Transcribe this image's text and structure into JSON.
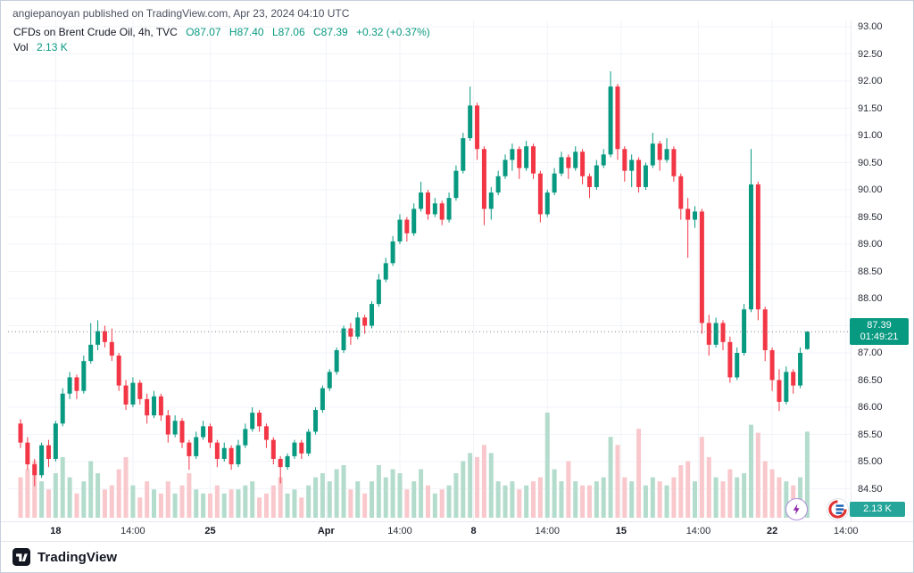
{
  "header": {
    "attribution": "angiepanoyan published on TradingView.com, Apr 23, 2024 04:10 UTC"
  },
  "legend": {
    "symbol": "CFDs on Brent Crude Oil, 4h, TVC",
    "o": "O87.07",
    "h": "H87.40",
    "l": "L87.06",
    "c": "C87.39",
    "change": "+0.32 (+0.37%)",
    "vol_label": "Vol",
    "vol_value": "2.13 K"
  },
  "price_axis_ui": {
    "last_price": "87.39",
    "countdown": "01:49:21",
    "volume_badge": "2.13 K"
  },
  "footer": {
    "brand": "TradingView"
  },
  "colors": {
    "up": "#089981",
    "down": "#f23645",
    "vol_up": "#b3dccd",
    "vol_down": "#f8c8cc",
    "accent": "#089981",
    "volume_badge_bg": "#26a69a",
    "boost_purple": "#8e24aa",
    "grid": "#f1f3f8"
  },
  "chart_data": {
    "type": "candlestick",
    "title": "CFDs on Brent Crude Oil",
    "timeframe": "4h",
    "exchange": "TVC",
    "last_price": 87.39,
    "last_volume_k": 2.13,
    "ohlc_current": {
      "open": 87.07,
      "high": 87.4,
      "low": 87.06,
      "close": 87.39,
      "change": 0.32,
      "change_pct": 0.37
    },
    "y_axis": {
      "max": 93.0,
      "min": 84.5
    },
    "y_ticks": [
      "93.00",
      "92.50",
      "92.00",
      "91.50",
      "91.00",
      "90.50",
      "90.00",
      "89.50",
      "89.00",
      "88.50",
      "88.00",
      "87.50",
      "87.00",
      "86.50",
      "86.00",
      "85.50",
      "85.00",
      "84.50"
    ],
    "x_ticks": [
      {
        "label": "18",
        "i": 5,
        "major": true
      },
      {
        "label": "14:00",
        "i": 16,
        "major": false
      },
      {
        "label": "25",
        "i": 27,
        "major": true
      },
      {
        "label": "Apr",
        "i": 43.5,
        "major": true
      },
      {
        "label": "14:00",
        "i": 54,
        "major": false
      },
      {
        "label": "8",
        "i": 64.5,
        "major": true
      },
      {
        "label": "14:00",
        "i": 75,
        "major": false
      },
      {
        "label": "15",
        "i": 85.5,
        "major": true
      },
      {
        "label": "14:00",
        "i": 96.5,
        "major": false
      },
      {
        "label": "22",
        "i": 107,
        "major": true
      },
      {
        "label": "14:00",
        "i": 117.5,
        "major": false
      }
    ],
    "volume_axis": {
      "max": 2.6
    },
    "candles": [
      [
        85.7,
        85.78,
        85.25,
        85.35,
        1.0
      ],
      [
        85.35,
        85.45,
        84.85,
        84.95,
        1.2
      ],
      [
        84.95,
        85.05,
        84.55,
        84.75,
        1.4
      ],
      [
        84.75,
        85.35,
        84.7,
        85.3,
        0.9
      ],
      [
        85.3,
        85.4,
        84.9,
        85.05,
        0.7
      ],
      [
        85.05,
        85.75,
        85.0,
        85.7,
        1.1
      ],
      [
        85.7,
        86.35,
        85.65,
        86.25,
        1.5
      ],
      [
        86.25,
        86.65,
        86.15,
        86.55,
        1.0
      ],
      [
        86.55,
        86.6,
        86.15,
        86.3,
        0.6
      ],
      [
        86.3,
        86.95,
        86.25,
        86.85,
        0.9
      ],
      [
        86.85,
        87.55,
        86.8,
        87.15,
        1.4
      ],
      [
        87.15,
        87.6,
        87.05,
        87.4,
        1.1
      ],
      [
        87.4,
        87.5,
        87.1,
        87.2,
        0.7
      ],
      [
        87.2,
        87.45,
        86.85,
        86.95,
        0.8
      ],
      [
        86.95,
        87.0,
        86.3,
        86.4,
        1.2
      ],
      [
        86.4,
        86.5,
        85.95,
        86.05,
        1.5
      ],
      [
        86.05,
        86.55,
        86.0,
        86.45,
        0.8
      ],
      [
        86.45,
        86.5,
        86.05,
        86.15,
        0.5
      ],
      [
        86.15,
        86.25,
        85.7,
        85.85,
        0.9
      ],
      [
        85.85,
        86.3,
        85.8,
        86.2,
        0.7
      ],
      [
        86.2,
        86.25,
        85.75,
        85.85,
        0.6
      ],
      [
        85.85,
        85.95,
        85.35,
        85.5,
        0.9
      ],
      [
        85.5,
        85.85,
        85.45,
        85.75,
        0.6
      ],
      [
        85.75,
        85.8,
        85.25,
        85.35,
        0.8
      ],
      [
        85.35,
        85.4,
        84.85,
        85.1,
        1.1
      ],
      [
        85.1,
        85.55,
        85.05,
        85.45,
        0.7
      ],
      [
        85.45,
        85.75,
        85.4,
        85.65,
        0.6
      ],
      [
        85.65,
        85.7,
        85.25,
        85.35,
        0.6
      ],
      [
        85.35,
        85.4,
        84.9,
        85.05,
        0.8
      ],
      [
        85.05,
        85.35,
        85.0,
        85.25,
        0.6
      ],
      [
        85.25,
        85.3,
        84.85,
        84.95,
        0.7
      ],
      [
        84.95,
        85.4,
        84.9,
        85.3,
        0.7
      ],
      [
        85.3,
        85.7,
        85.25,
        85.6,
        0.8
      ],
      [
        85.6,
        86.0,
        85.55,
        85.9,
        0.9
      ],
      [
        85.9,
        85.95,
        85.55,
        85.65,
        0.5
      ],
      [
        85.65,
        85.7,
        85.25,
        85.4,
        0.6
      ],
      [
        85.4,
        85.45,
        84.95,
        85.05,
        0.8
      ],
      [
        85.05,
        85.1,
        84.6,
        84.9,
        1.0
      ],
      [
        84.9,
        85.15,
        84.85,
        85.1,
        0.6
      ],
      [
        85.1,
        85.4,
        85.05,
        85.35,
        0.7
      ],
      [
        85.35,
        85.4,
        85.05,
        85.15,
        0.5
      ],
      [
        85.15,
        85.6,
        85.1,
        85.55,
        0.8
      ],
      [
        85.55,
        86.0,
        85.5,
        85.95,
        1.0
      ],
      [
        85.95,
        86.4,
        85.9,
        86.35,
        1.1
      ],
      [
        86.35,
        86.7,
        86.3,
        86.65,
        0.9
      ],
      [
        86.65,
        87.1,
        86.6,
        87.05,
        1.2
      ],
      [
        87.05,
        87.5,
        87.0,
        87.45,
        1.3
      ],
      [
        87.45,
        87.55,
        87.15,
        87.3,
        0.7
      ],
      [
        87.3,
        87.75,
        87.25,
        87.65,
        0.9
      ],
      [
        87.65,
        87.7,
        87.35,
        87.5,
        0.6
      ],
      [
        87.5,
        87.95,
        87.45,
        87.9,
        0.9
      ],
      [
        87.9,
        88.45,
        87.85,
        88.35,
        1.3
      ],
      [
        88.35,
        88.75,
        88.3,
        88.65,
        1.0
      ],
      [
        88.65,
        89.15,
        88.6,
        89.05,
        1.2
      ],
      [
        89.05,
        89.55,
        89.0,
        89.45,
        1.1
      ],
      [
        89.45,
        89.5,
        89.05,
        89.2,
        0.7
      ],
      [
        89.2,
        89.75,
        89.15,
        89.65,
        0.9
      ],
      [
        89.65,
        90.15,
        89.6,
        89.95,
        1.2
      ],
      [
        89.95,
        90.0,
        89.45,
        89.55,
        0.8
      ],
      [
        89.55,
        89.85,
        89.5,
        89.75,
        0.6
      ],
      [
        89.75,
        89.8,
        89.35,
        89.45,
        0.7
      ],
      [
        89.45,
        89.95,
        89.4,
        89.85,
        0.8
      ],
      [
        89.85,
        90.45,
        89.8,
        90.35,
        1.1
      ],
      [
        90.35,
        91.05,
        90.3,
        90.95,
        1.4
      ],
      [
        90.95,
        91.9,
        90.9,
        91.55,
        1.6
      ],
      [
        91.55,
        91.6,
        90.55,
        90.75,
        1.5
      ],
      [
        90.75,
        90.8,
        89.35,
        89.65,
        1.8
      ],
      [
        89.65,
        90.05,
        89.45,
        89.95,
        1.6
      ],
      [
        89.95,
        90.35,
        89.9,
        90.25,
        0.9
      ],
      [
        90.25,
        90.65,
        90.2,
        90.55,
        0.8
      ],
      [
        90.55,
        90.85,
        90.35,
        90.75,
        0.9
      ],
      [
        90.75,
        90.8,
        90.2,
        90.4,
        0.7
      ],
      [
        90.4,
        90.9,
        90.35,
        90.8,
        0.8
      ],
      [
        90.8,
        90.85,
        90.2,
        90.3,
        0.9
      ],
      [
        90.3,
        90.35,
        89.4,
        89.55,
        1.0
      ],
      [
        89.55,
        90.0,
        89.5,
        89.95,
        2.6
      ],
      [
        89.95,
        90.4,
        89.9,
        90.3,
        1.2
      ],
      [
        90.3,
        90.7,
        90.25,
        90.6,
        0.9
      ],
      [
        90.6,
        90.65,
        90.2,
        90.4,
        1.4
      ],
      [
        90.4,
        90.8,
        90.35,
        90.7,
        0.9
      ],
      [
        90.7,
        90.75,
        90.1,
        90.25,
        0.8
      ],
      [
        90.25,
        90.3,
        89.85,
        90.05,
        0.8
      ],
      [
        90.05,
        90.55,
        90.0,
        90.45,
        0.9
      ],
      [
        90.45,
        90.75,
        90.4,
        90.65,
        1.0
      ],
      [
        90.65,
        92.18,
        90.6,
        91.9,
        2.0
      ],
      [
        91.9,
        91.95,
        90.55,
        90.75,
        1.8
      ],
      [
        90.75,
        90.8,
        90.15,
        90.35,
        1.0
      ],
      [
        90.35,
        90.65,
        90.05,
        90.55,
        0.9
      ],
      [
        90.55,
        90.6,
        89.95,
        90.05,
        2.2
      ],
      [
        90.05,
        90.5,
        90.0,
        90.45,
        0.8
      ],
      [
        90.45,
        91.05,
        90.4,
        90.85,
        1.0
      ],
      [
        90.85,
        90.9,
        90.35,
        90.55,
        0.9
      ],
      [
        90.55,
        90.95,
        90.5,
        90.75,
        0.8
      ],
      [
        90.75,
        90.8,
        90.15,
        90.25,
        1.0
      ],
      [
        90.25,
        90.3,
        89.45,
        89.65,
        1.3
      ],
      [
        89.65,
        89.85,
        88.75,
        89.45,
        1.4
      ],
      [
        89.45,
        89.7,
        89.3,
        89.6,
        0.9
      ],
      [
        89.6,
        89.65,
        87.35,
        87.55,
        2.0
      ],
      [
        87.55,
        87.7,
        86.95,
        87.15,
        1.5
      ],
      [
        87.15,
        87.65,
        87.1,
        87.55,
        1.0
      ],
      [
        87.55,
        87.6,
        87.05,
        87.2,
        0.9
      ],
      [
        87.2,
        87.3,
        86.45,
        86.55,
        1.2
      ],
      [
        86.55,
        87.1,
        86.5,
        87.0,
        1.0
      ],
      [
        87.0,
        87.9,
        86.95,
        87.8,
        1.1
      ],
      [
        87.8,
        90.75,
        87.75,
        90.1,
        2.3
      ],
      [
        90.1,
        90.15,
        87.6,
        87.8,
        2.1
      ],
      [
        87.8,
        87.85,
        86.85,
        87.05,
        1.4
      ],
      [
        87.05,
        87.1,
        86.3,
        86.5,
        1.2
      ],
      [
        86.5,
        86.7,
        85.93,
        86.1,
        1.0
      ],
      [
        86.1,
        86.75,
        86.05,
        86.65,
        0.9
      ],
      [
        86.65,
        86.7,
        86.25,
        86.4,
        0.8
      ],
      [
        86.4,
        87.1,
        86.35,
        87.0,
        1.0
      ],
      [
        87.07,
        87.4,
        87.06,
        87.39,
        2.13
      ]
    ]
  }
}
